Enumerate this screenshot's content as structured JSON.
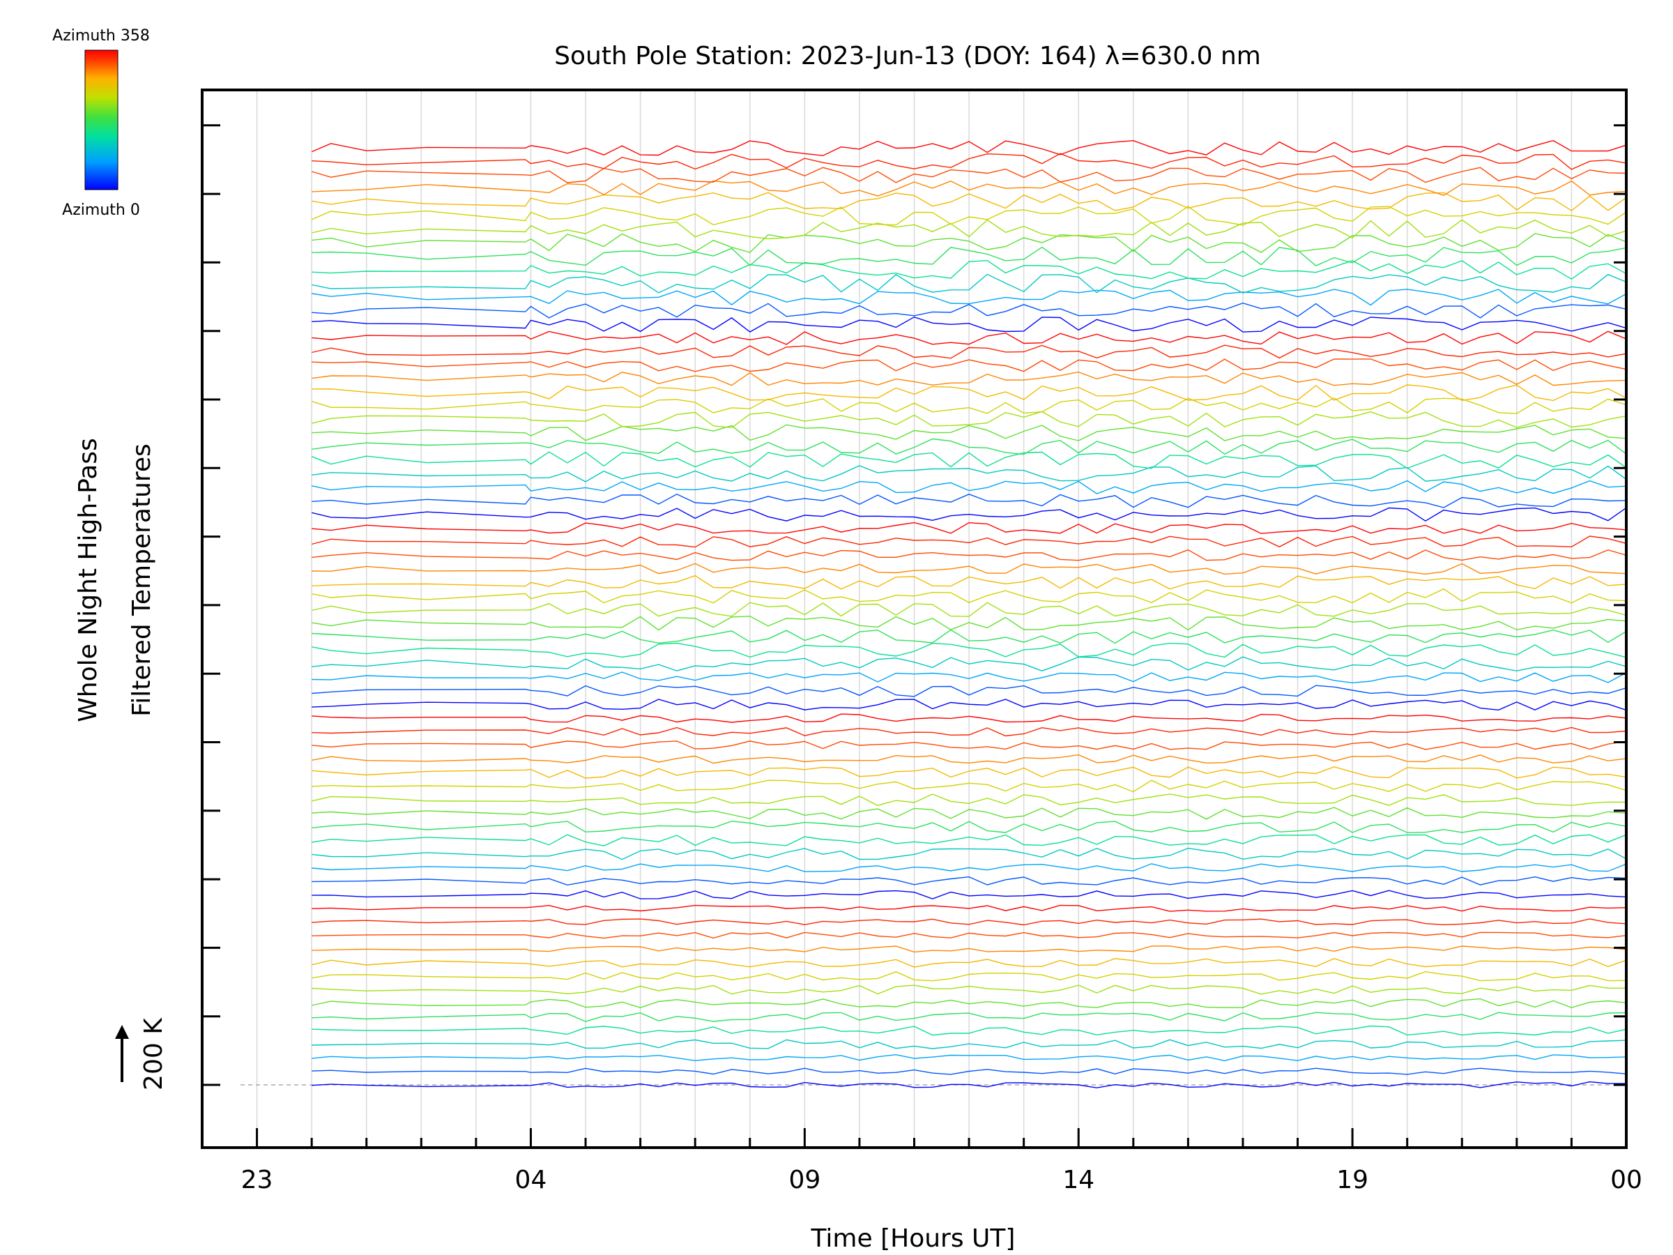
{
  "chart_data": {
    "type": "line",
    "title": "South Pole Station: 2023-Jun-13 (DOY: 164) λ=630.0 nm",
    "xlabel": "Time [Hours UT]",
    "ylabel_line1": "Whole Night High-Pass",
    "ylabel_line2": "Filtered Temperatures",
    "scale_label": "200 K",
    "x_ticks": [
      "23",
      "04",
      "09",
      "14",
      "19",
      "00"
    ],
    "x_range_hours_ut": [
      "22:00",
      "00:00"
    ],
    "data_start_hour_ut": "00:00",
    "stack_count": 5,
    "traces_per_stack": 14,
    "trace_count": 70,
    "colorbar": {
      "label_top": "Azimuth 358",
      "label_bottom": "Azimuth 0",
      "colormap": "rainbow (blue to red)",
      "colors": [
        "#0000ff",
        "#00a0ff",
        "#00e0a0",
        "#40e040",
        "#c0e000",
        "#ffb000",
        "#ff4000",
        "#ff0000"
      ]
    },
    "grid": "vertical lines every hour",
    "y_axis_numeric_values": "not shown (stacked offsets)"
  }
}
